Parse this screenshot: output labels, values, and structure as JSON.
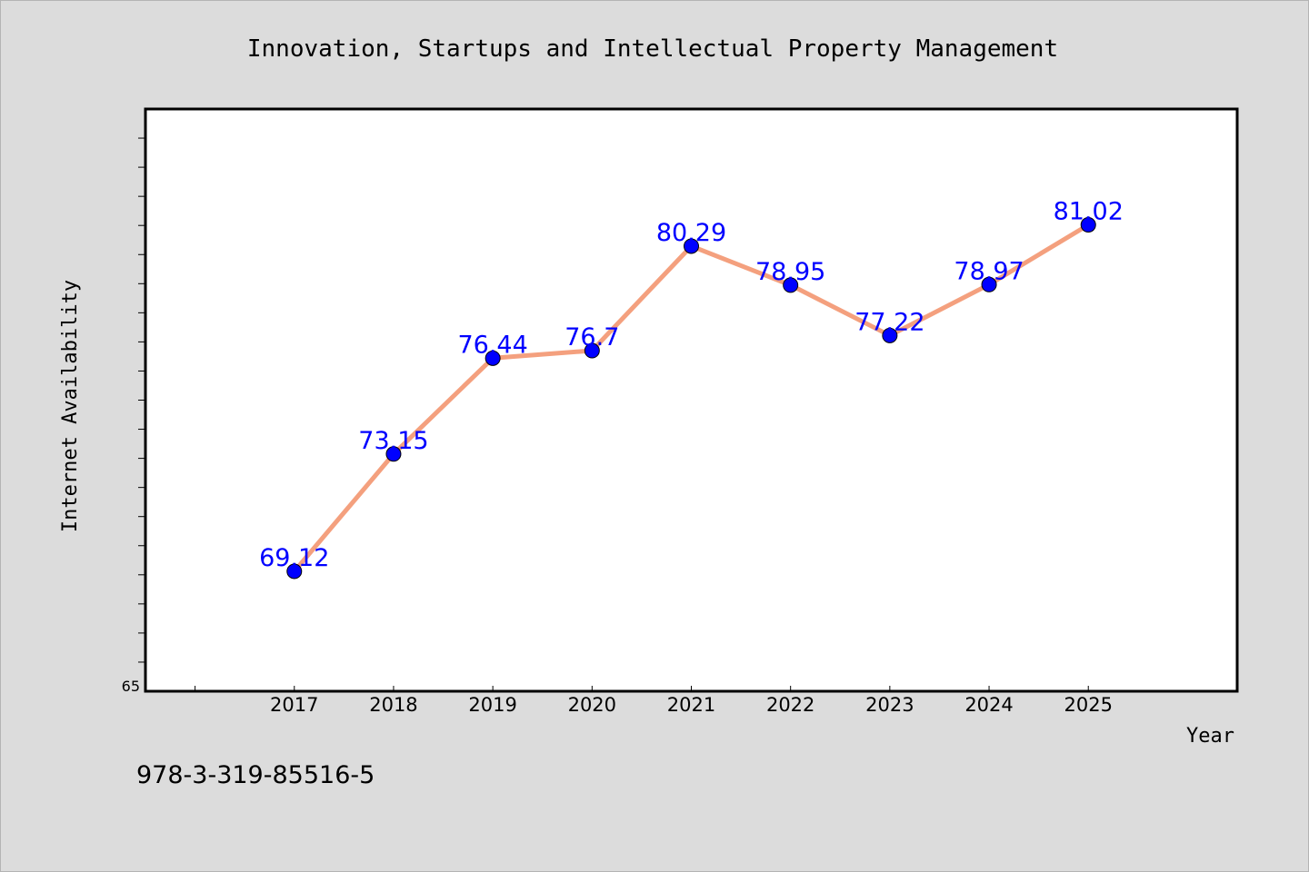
{
  "chart_data": {
    "type": "line",
    "title": "Innovation, Startups and Intellectual Property Management",
    "xlabel": "Year",
    "ylabel": "Internet Availability",
    "x": [
      2017,
      2018,
      2019,
      2020,
      2021,
      2022,
      2023,
      2024,
      2025
    ],
    "x_tick_labels": [
      "2017",
      "2018",
      "2019",
      "2020",
      "2021",
      "2022",
      "2023",
      "2024",
      "2025"
    ],
    "xlim": [
      2015.5,
      2026.5
    ],
    "ylim": [
      65,
      85
    ],
    "y_tick_labels": [
      {
        "value": 65,
        "label": "65"
      }
    ],
    "series": [
      {
        "values": [
          69.12,
          73.15,
          76.44,
          76.7,
          80.29,
          78.95,
          77.22,
          78.97,
          81.02
        ],
        "data_labels": [
          "69.12",
          "73.15",
          "76.44",
          "76.7",
          "80.29",
          "78.95",
          "77.22",
          "78.97",
          "81.02"
        ],
        "line_color": "#f4a07e",
        "marker_color": "#0000ff",
        "label_color": "#0000ff"
      }
    ],
    "grid": false,
    "legend": false
  },
  "footer_text": "978-3-319-85516-5",
  "colors": {
    "page_background": "#dcdcdc",
    "plot_background": "#ffffff",
    "axis": "#000000"
  }
}
